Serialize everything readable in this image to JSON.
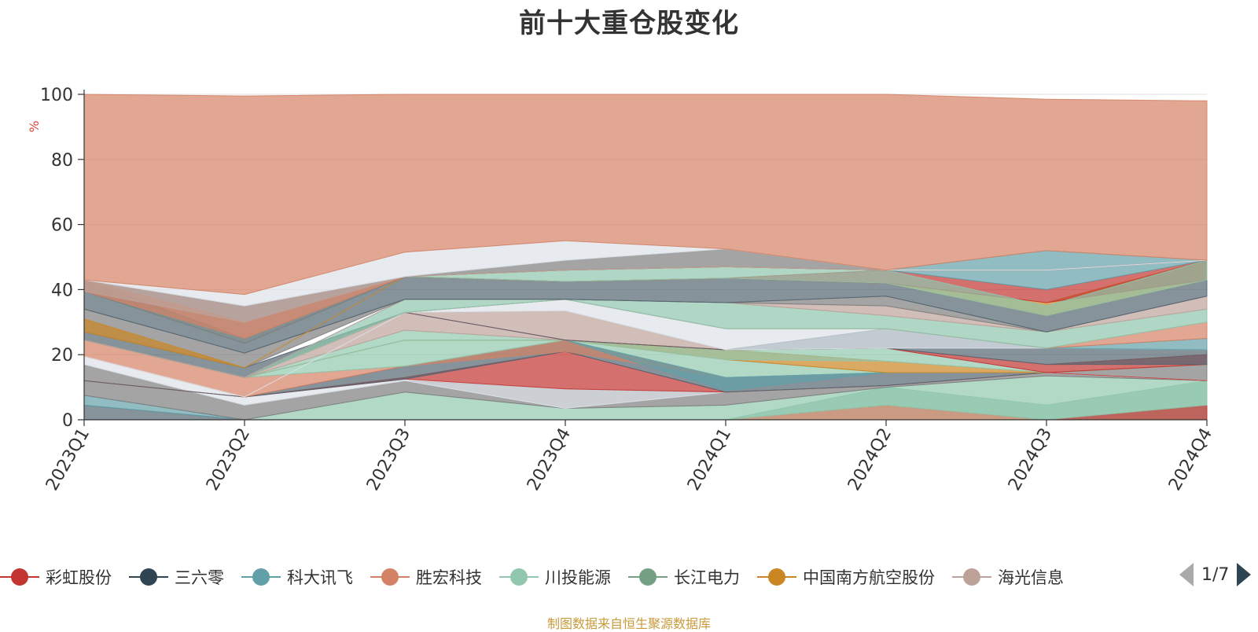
{
  "chart_data": {
    "type": "area",
    "title": "前十大重仓股变化",
    "ylabel": "%",
    "xlabel": "",
    "ylim": [
      0,
      100
    ],
    "yticks": [
      0,
      20,
      40,
      60,
      80,
      100
    ],
    "categories": [
      "2023Q1",
      "2023Q2",
      "2023Q3",
      "2023Q4",
      "2024Q1",
      "2024Q2",
      "2024Q3",
      "2024Q4"
    ],
    "bands": [
      {
        "color": "#546570",
        "lower": [
          0,
          0,
          0,
          0,
          0,
          0,
          0,
          0
        ],
        "upper": [
          4.5,
          0,
          0,
          0,
          0,
          0,
          0,
          0
        ]
      },
      {
        "color": "#61a0a8",
        "lower": [
          4.5,
          0,
          0,
          0,
          0,
          0,
          0,
          0
        ],
        "upper": [
          7.5,
          0,
          0,
          0,
          0,
          0,
          0,
          0
        ]
      },
      {
        "color": "#91c7ae",
        "lower": [
          0,
          0,
          0,
          0,
          0,
          0,
          0,
          0
        ],
        "upper": [
          0,
          0,
          8.5,
          3.5,
          4.5,
          10,
          13.5,
          12
        ]
      },
      {
        "color": "#d48265",
        "lower": [
          0,
          0,
          0,
          0,
          0,
          0,
          0,
          0
        ],
        "upper": [
          0,
          0,
          0,
          0,
          0,
          4.5,
          0,
          0
        ]
      },
      {
        "color": "#c23531",
        "lower": [
          0,
          0,
          0,
          0,
          0,
          0,
          0,
          0
        ],
        "upper": [
          0,
          0,
          0,
          0,
          0,
          0,
          0,
          4.5
        ]
      },
      {
        "color": "#8fc5ad",
        "lower": [
          0,
          0,
          0,
          0,
          0,
          4.5,
          0,
          4.5
        ],
        "upper": [
          0,
          0,
          0,
          0,
          0,
          10,
          4.5,
          12
        ]
      },
      {
        "color": "#7d7d7d",
        "lower": [
          7.5,
          0,
          8.5,
          3.5,
          4.5,
          10,
          13.5,
          12
        ],
        "upper": [
          17,
          4.5,
          12,
          9.5,
          8.5,
          10.5,
          14.5,
          17
        ]
      },
      {
        "color": "#dde3ea",
        "lower": [
          17,
          4.5,
          12,
          3.5,
          8.5,
          10.5,
          14.5,
          12
        ],
        "upper": [
          19.5,
          7,
          12.5,
          9.5,
          8.5,
          10.5,
          14.5,
          12
        ]
      },
      {
        "color": "#c23531",
        "lower": [
          12,
          7,
          12.5,
          9.5,
          8.5,
          10.5,
          14.5,
          12
        ],
        "upper": [
          12,
          7,
          13,
          21,
          8.5,
          10.5,
          14.5,
          12
        ]
      },
      {
        "color": "#546570",
        "lower": [
          12,
          7,
          12.5,
          21,
          8.5,
          10.5,
          14.5,
          17
        ],
        "upper": [
          12,
          7,
          16.5,
          24.5,
          13,
          14.5,
          14.5,
          17
        ]
      },
      {
        "color": "#d48265",
        "lower": [
          19.5,
          7,
          16.5,
          21,
          13,
          14.5,
          14.5,
          17
        ],
        "upper": [
          24.5,
          13,
          16.5,
          24.5,
          13,
          14.5,
          14.5,
          17
        ]
      },
      {
        "color": "#91c7ae",
        "lower": [
          24.5,
          13,
          16.5,
          24.5,
          13,
          14.5,
          14.5,
          17
        ],
        "upper": [
          24.5,
          13,
          24.5,
          24.5,
          18.5,
          14.5,
          14.5,
          17
        ]
      },
      {
        "color": "#61a0a8",
        "lower": [
          24.5,
          13,
          24.5,
          24.5,
          9,
          14.5,
          14.5,
          17
        ],
        "upper": [
          24.5,
          13,
          24.5,
          24.5,
          13,
          14.5,
          14.5,
          17
        ]
      },
      {
        "color": "#ca8622",
        "lower": [
          24.5,
          13,
          24.5,
          24.5,
          18.5,
          14.5,
          14.5,
          17
        ],
        "upper": [
          24.5,
          13,
          24.5,
          24.5,
          21.5,
          18,
          14.5,
          17
        ]
      },
      {
        "color": "#91c7ae",
        "lower": [
          24.5,
          13,
          24.5,
          24.5,
          18.5,
          18,
          14.5,
          17
        ],
        "upper": [
          24.5,
          13,
          27.5,
          24.5,
          21.5,
          22,
          14.5,
          17
        ]
      },
      {
        "color": "#bda29a",
        "lower": [
          24.5,
          13,
          27.5,
          24.5,
          21.5,
          22,
          14.5,
          17
        ],
        "upper": [
          24.5,
          13,
          33,
          33.5,
          21.5,
          22,
          14.5,
          17
        ]
      },
      {
        "color": "#c23531",
        "lower": [
          24.5,
          13,
          33,
          24.5,
          21.5,
          22,
          14.5,
          17
        ],
        "upper": [
          24.5,
          13,
          33,
          24.5,
          21.5,
          22,
          17,
          20
        ]
      },
      {
        "color": "#546570",
        "lower": [
          24.5,
          13,
          33,
          24.5,
          21.5,
          22,
          17,
          17
        ],
        "upper": [
          27,
          16,
          33,
          24.5,
          21.5,
          28,
          22,
          21.5
        ]
      },
      {
        "color": "#dde3ea",
        "lower": [
          19.5,
          7,
          33,
          33.5,
          21.5,
          22,
          22,
          21.5
        ],
        "upper": [
          19.5,
          7,
          33,
          37,
          28,
          28,
          22,
          21.5
        ]
      },
      {
        "color": "#61a0a8",
        "lower": [
          24.5,
          13,
          33,
          37,
          28,
          28,
          22,
          21.5
        ],
        "upper": [
          24.5,
          13,
          33,
          37,
          28,
          28,
          22,
          25
        ]
      },
      {
        "color": "#d48265",
        "lower": [
          24.5,
          13,
          33,
          37,
          28,
          28,
          22,
          25
        ],
        "upper": [
          24.5,
          13,
          33,
          37,
          28,
          28,
          22,
          30
        ]
      },
      {
        "color": "#8fc5ad",
        "lower": [
          24.5,
          13,
          33,
          37,
          28,
          28,
          22,
          30
        ],
        "upper": [
          24.5,
          13,
          37,
          37,
          36,
          32,
          27,
          34
        ]
      },
      {
        "color": "#bda29a",
        "lower": [
          24.5,
          13,
          37,
          37,
          36,
          32,
          27,
          34
        ],
        "upper": [
          24.5,
          13,
          37,
          37,
          36,
          35,
          27,
          38
        ]
      },
      {
        "color": "#7d7d7d",
        "lower": [
          27,
          16,
          37,
          37,
          36,
          35,
          27,
          38
        ],
        "upper": [
          34,
          20.5,
          37,
          37,
          36,
          38,
          27,
          38
        ]
      },
      {
        "color": "#546570",
        "lower": [
          34,
          20.5,
          37,
          37,
          36,
          38,
          27,
          38
        ],
        "upper": [
          39.5,
          23.5,
          44,
          42.5,
          43.5,
          42,
          32,
          43
        ]
      },
      {
        "color": "#ca8622",
        "lower": [
          27,
          16,
          44,
          42.5,
          43.5,
          42,
          32,
          43
        ],
        "upper": [
          31,
          16,
          44,
          42.5,
          43.5,
          42,
          36,
          49
        ]
      },
      {
        "color": "#c23531",
        "lower": [
          39.5,
          23.5,
          44,
          42.5,
          43.5,
          42,
          36,
          43
        ],
        "upper": [
          39.5,
          23.5,
          44,
          42.5,
          43.5,
          46,
          40,
          49
        ]
      },
      {
        "color": "#8fc5ad",
        "lower": [
          39.5,
          23.5,
          44,
          42.5,
          43.5,
          42,
          32,
          43
        ],
        "upper": [
          39.5,
          23.5,
          44,
          46,
          47,
          46,
          35,
          49
        ]
      },
      {
        "color": "#61a0a8",
        "lower": [
          39.5,
          23.5,
          44,
          46,
          47,
          46,
          40,
          49
        ],
        "upper": [
          43,
          25,
          44,
          46,
          47,
          46,
          52,
          49
        ]
      },
      {
        "color": "#7d7d7d",
        "lower": [
          39.5,
          23.5,
          44,
          46,
          47,
          46,
          46,
          49
        ],
        "upper": [
          43,
          35,
          44,
          49,
          52.5,
          46,
          46,
          49
        ]
      },
      {
        "color": "#d48265",
        "lower": [
          39.5,
          25,
          44,
          46,
          47,
          46,
          46,
          49
        ],
        "upper": [
          43,
          30,
          44,
          46,
          47,
          46,
          46,
          49
        ]
      },
      {
        "color": "#bda29a",
        "lower": [
          39.5,
          30,
          44,
          46,
          47,
          46,
          46,
          49
        ],
        "upper": [
          43,
          35,
          44,
          46,
          47,
          46,
          46,
          49
        ]
      },
      {
        "color": "#dde3ea",
        "lower": [
          43,
          35,
          44,
          49,
          52.5,
          46,
          46,
          49
        ],
        "upper": [
          43,
          38.5,
          51.5,
          55,
          52.5,
          46,
          46,
          49
        ]
      },
      {
        "color": "#d48265",
        "lower": [
          43,
          38.5,
          51.5,
          55,
          52.5,
          46,
          52,
          49
        ],
        "upper": [
          100,
          99.5,
          100,
          100,
          100,
          100,
          98.5,
          98
        ]
      }
    ]
  },
  "legend": {
    "items": [
      {
        "label": "彩虹股份",
        "color": "#c23531"
      },
      {
        "label": "三六零",
        "color": "#2f4554"
      },
      {
        "label": "科大讯飞",
        "color": "#61a0a8"
      },
      {
        "label": "胜宏科技",
        "color": "#d48265"
      },
      {
        "label": "川投能源",
        "color": "#91c7ae"
      },
      {
        "label": "长江电力",
        "color": "#749f83"
      },
      {
        "label": "中国南方航空股份",
        "color": "#ca8622"
      },
      {
        "label": "海光信息",
        "color": "#bda29a"
      }
    ],
    "page_indicator": "1/7"
  },
  "footer": {
    "source": "制图数据来自恒生聚源数据库"
  }
}
